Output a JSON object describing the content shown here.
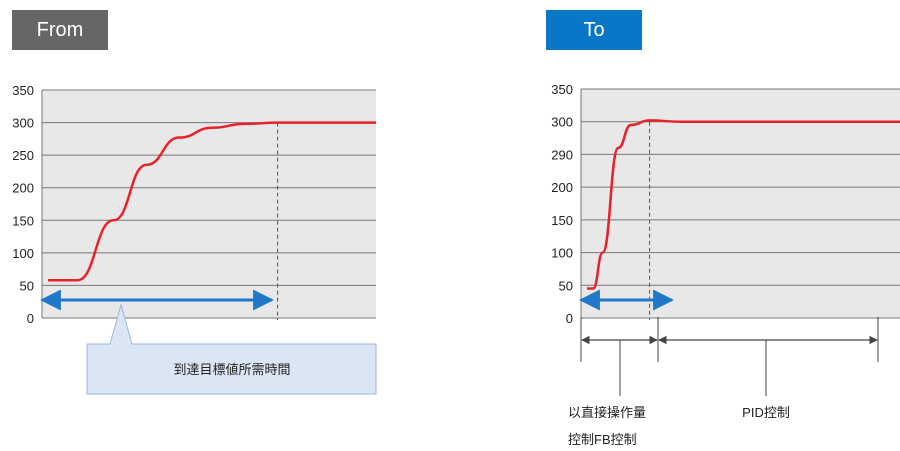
{
  "badges": {
    "from": "From",
    "to": "To"
  },
  "colors": {
    "from_badge": "#666666",
    "to_badge": "#0a76c8",
    "plot_bg": "#e8e8e8",
    "curve": "#e8222a",
    "arrow": "#1f78c8",
    "callout_bg": "#dbe6f4"
  },
  "chart_data": [
    {
      "type": "line",
      "title": "",
      "xlabel": "",
      "ylabel": "",
      "yticks": [
        "350",
        "300",
        "250",
        "200",
        "150",
        "100",
        "50",
        "0"
      ],
      "ylim": [
        0,
        350
      ],
      "grid": true,
      "series": [
        {
          "values": [
            [
              0,
              58
            ],
            [
              0.09,
              58
            ],
            [
              0.2,
              150
            ],
            [
              0.3,
              235
            ],
            [
              0.4,
              277
            ],
            [
              0.5,
              292
            ],
            [
              0.6,
              298
            ],
            [
              0.7,
              300
            ],
            [
              1.0,
              300
            ]
          ]
        }
      ],
      "marker_line_x": 0.7,
      "annotation": "到達目標値所需時間"
    },
    {
      "type": "line",
      "title": "",
      "xlabel": "",
      "ylabel": "",
      "yticks": [
        "350",
        "300",
        "290",
        "200",
        "150",
        "100",
        "50",
        "0"
      ],
      "ylim": [
        0,
        350
      ],
      "grid": true,
      "series": [
        {
          "values": [
            [
              0,
              45
            ],
            [
              0.02,
              45
            ],
            [
              0.05,
              100
            ],
            [
              0.1,
              260
            ],
            [
              0.14,
              295
            ],
            [
              0.2,
              302
            ],
            [
              0.3,
              300
            ],
            [
              1.0,
              300
            ]
          ]
        }
      ],
      "marker_line_x": 0.2,
      "annotations": [
        "以直接操作量",
        "控制FB控制",
        "PID控制"
      ]
    }
  ]
}
